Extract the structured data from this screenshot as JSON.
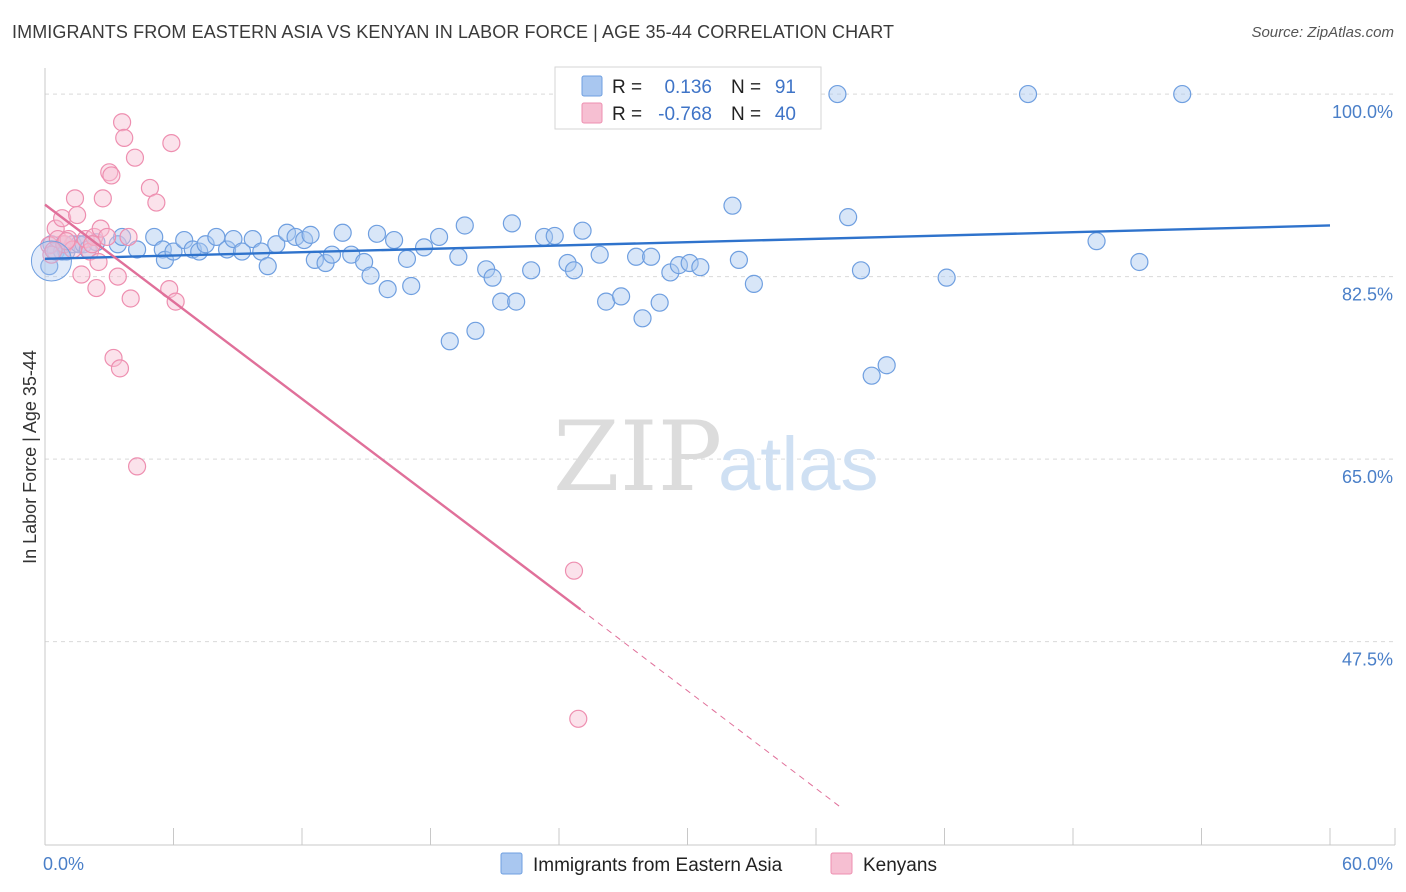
{
  "title": "IMMIGRANTS FROM EASTERN ASIA VS KENYAN IN LABOR FORCE | AGE 35-44 CORRELATION CHART",
  "source": "Source: ZipAtlas.com",
  "watermark": {
    "zip": "ZIP",
    "atlas": "atlas"
  },
  "colors": {
    "blue": "#6f9fe0",
    "blue_fill": "#a9c7f0",
    "blue_line": "#2f73cc",
    "pink": "#ee8fb0",
    "pink_fill": "#f6bfd2",
    "pink_line": "#e0709a",
    "grid": "#d9d9d9",
    "tick_text": "#4a7fc8"
  },
  "legend": {
    "r_label": "R =",
    "n_label": "N =",
    "rows": [
      {
        "r": "0.136",
        "n": "91",
        "color": "blue"
      },
      {
        "r": "-0.768",
        "n": "40",
        "color": "pink"
      }
    ]
  },
  "bottom_legend": [
    {
      "label": "Immigrants from Eastern Asia",
      "color": "blue"
    },
    {
      "label": "Kenyans",
      "color": "pink"
    }
  ],
  "chart_data": {
    "type": "scatter",
    "title": "IMMIGRANTS FROM EASTERN ASIA VS KENYAN IN LABOR FORCE | AGE 35-44 CORRELATION CHART",
    "xlabel": "",
    "ylabel": "In Labor Force | Age 35-44",
    "xlim": [
      0,
      60
    ],
    "ylim": [
      28,
      102.5
    ],
    "x_tick_labels": [
      "0.0%",
      "60.0%"
    ],
    "y_ticks": [
      100,
      82.5,
      65,
      47.5
    ],
    "y_tick_labels": [
      "100.0%",
      "82.5%",
      "65.0%",
      "47.5%"
    ],
    "grid": true,
    "series": [
      {
        "name": "Immigrants from Eastern Asia",
        "color": "blue",
        "r": 0.136,
        "n": 91,
        "trend": {
          "x": [
            0,
            60
          ],
          "y": [
            84.2,
            87.4
          ],
          "style": "solid"
        },
        "points": [
          [
            0.2,
            83.5
          ],
          [
            0.3,
            85.6
          ],
          [
            0.5,
            84.9
          ],
          [
            0.8,
            84.9
          ],
          [
            0.9,
            85.6
          ],
          [
            1.0,
            84.9
          ],
          [
            1.3,
            85.6
          ],
          [
            1.6,
            85.6
          ],
          [
            1.8,
            85.6
          ],
          [
            2.0,
            85.1
          ],
          [
            2.4,
            85.8
          ],
          [
            3.4,
            85.6
          ],
          [
            3.6,
            86.3
          ],
          [
            4.3,
            85.1
          ],
          [
            5.1,
            86.3
          ],
          [
            5.5,
            85.1
          ],
          [
            5.6,
            84.1
          ],
          [
            6.0,
            84.9
          ],
          [
            6.5,
            86.0
          ],
          [
            6.9,
            85.1
          ],
          [
            7.2,
            84.9
          ],
          [
            7.5,
            85.6
          ],
          [
            8.0,
            86.3
          ],
          [
            8.5,
            85.1
          ],
          [
            8.8,
            86.1
          ],
          [
            9.2,
            84.9
          ],
          [
            9.7,
            86.1
          ],
          [
            10.1,
            84.9
          ],
          [
            10.4,
            83.5
          ],
          [
            10.8,
            85.6
          ],
          [
            11.3,
            86.7
          ],
          [
            11.7,
            86.3
          ],
          [
            12.1,
            86.0
          ],
          [
            12.4,
            86.5
          ],
          [
            12.6,
            84.1
          ],
          [
            13.1,
            83.8
          ],
          [
            13.4,
            84.6
          ],
          [
            13.9,
            86.7
          ],
          [
            14.3,
            84.6
          ],
          [
            14.9,
            83.9
          ],
          [
            15.2,
            82.6
          ],
          [
            15.5,
            86.6
          ],
          [
            16.0,
            81.3
          ],
          [
            16.3,
            86.0
          ],
          [
            16.9,
            84.2
          ],
          [
            17.1,
            81.6
          ],
          [
            17.7,
            85.3
          ],
          [
            18.4,
            86.3
          ],
          [
            18.9,
            76.3
          ],
          [
            19.3,
            84.4
          ],
          [
            19.6,
            87.4
          ],
          [
            20.1,
            77.3
          ],
          [
            20.6,
            83.2
          ],
          [
            20.9,
            82.4
          ],
          [
            21.3,
            80.1
          ],
          [
            21.8,
            87.6
          ],
          [
            22.0,
            80.1
          ],
          [
            22.7,
            83.1
          ],
          [
            23.3,
            86.3
          ],
          [
            23.8,
            86.4
          ],
          [
            24.4,
            83.8
          ],
          [
            24.7,
            83.1
          ],
          [
            25.1,
            86.9
          ],
          [
            25.9,
            84.6
          ],
          [
            26.2,
            80.1
          ],
          [
            26.9,
            80.6
          ],
          [
            27.6,
            84.4
          ],
          [
            27.9,
            78.5
          ],
          [
            28.3,
            84.4
          ],
          [
            28.7,
            80.0
          ],
          [
            29.2,
            82.9
          ],
          [
            29.6,
            83.6
          ],
          [
            30.1,
            83.8
          ],
          [
            30.6,
            83.4
          ],
          [
            32.1,
            89.3
          ],
          [
            32.4,
            84.1
          ],
          [
            33.1,
            81.8
          ],
          [
            34.1,
            100.0
          ],
          [
            37.0,
            100.0
          ],
          [
            37.5,
            88.2
          ],
          [
            38.1,
            83.1
          ],
          [
            38.6,
            73.0
          ],
          [
            39.3,
            74.0
          ],
          [
            42.1,
            82.4
          ],
          [
            45.9,
            100.0
          ],
          [
            49.1,
            85.9
          ],
          [
            51.1,
            83.9
          ],
          [
            53.1,
            100.0
          ],
          [
            34.3,
            100.0
          ]
        ]
      },
      {
        "name": "Kenyans",
        "color": "pink",
        "r": -0.768,
        "n": 40,
        "trend": {
          "x": [
            0,
            25
          ],
          "y": [
            89.4,
            50.6
          ],
          "style": "solid",
          "dashed_to": [
            37.1,
            31.7
          ]
        },
        "points": [
          [
            0.2,
            85.5
          ],
          [
            0.3,
            84.6
          ],
          [
            0.5,
            87.1
          ],
          [
            0.6,
            86.1
          ],
          [
            0.8,
            88.1
          ],
          [
            0.9,
            85.6
          ],
          [
            1.1,
            86.1
          ],
          [
            1.3,
            85.1
          ],
          [
            1.4,
            90.0
          ],
          [
            1.5,
            88.4
          ],
          [
            1.7,
            82.7
          ],
          [
            1.9,
            86.1
          ],
          [
            2.1,
            84.9
          ],
          [
            2.3,
            86.3
          ],
          [
            2.4,
            81.4
          ],
          [
            2.5,
            83.9
          ],
          [
            2.6,
            87.1
          ],
          [
            2.7,
            90.0
          ],
          [
            2.9,
            86.3
          ],
          [
            3.0,
            92.5
          ],
          [
            3.1,
            92.2
          ],
          [
            3.2,
            74.7
          ],
          [
            3.4,
            82.5
          ],
          [
            3.5,
            73.7
          ],
          [
            3.6,
            97.3
          ],
          [
            3.7,
            95.8
          ],
          [
            3.9,
            86.3
          ],
          [
            4.0,
            80.4
          ],
          [
            4.2,
            93.9
          ],
          [
            4.3,
            64.3
          ],
          [
            4.9,
            91.0
          ],
          [
            5.2,
            89.6
          ],
          [
            5.8,
            81.3
          ],
          [
            5.9,
            95.3
          ],
          [
            6.1,
            80.1
          ],
          [
            24.7,
            54.3
          ],
          [
            24.9,
            40.1
          ],
          [
            1.0,
            85.9
          ],
          [
            0.4,
            85.0
          ],
          [
            2.2,
            85.6
          ]
        ]
      }
    ]
  }
}
